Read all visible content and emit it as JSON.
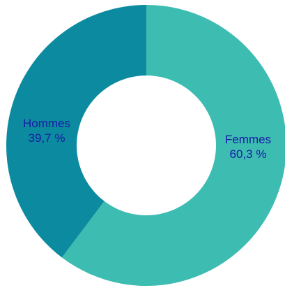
{
  "chart_data": {
    "type": "pie",
    "donut": true,
    "title": "",
    "categories": [
      "Femmes",
      "Hommes"
    ],
    "values": [
      60.3,
      39.7
    ],
    "value_labels": [
      "60,3 %",
      "39,7 %"
    ],
    "colors": [
      "#3dbcb2",
      "#0c8ba0"
    ],
    "label_color": "#1a1aa6",
    "start_angle_deg": 0,
    "direction": "clockwise"
  }
}
